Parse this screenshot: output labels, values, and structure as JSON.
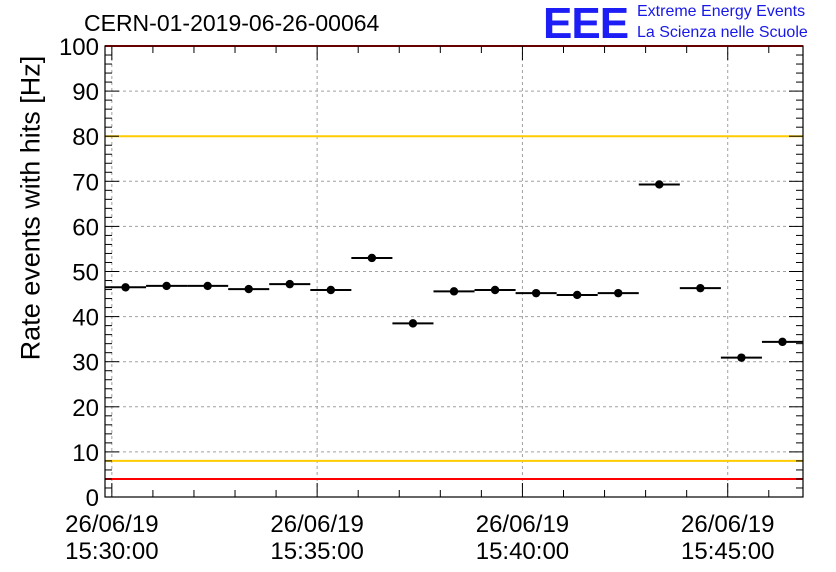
{
  "header": {
    "title": "CERN-01-2019-06-26-00064",
    "logo_text": "EEE",
    "logo_line1": "Extreme Energy Events",
    "logo_line2": "La Scienza nelle Scuole"
  },
  "colors": {
    "logo": "#1d1df5",
    "limit_red": "#ff0000",
    "limit_yellow": "#ffcc00",
    "grid": "#a0a0a0",
    "marker": "#000000"
  },
  "chart_data": {
    "type": "scatter",
    "title": "CERN-01-2019-06-26-00064",
    "xlabel": "",
    "ylabel": "Rate events with hits [Hz]",
    "ylim": [
      0,
      100
    ],
    "y_ticks": [
      "0",
      "10",
      "20",
      "30",
      "40",
      "50",
      "60",
      "70",
      "80",
      "90",
      "100"
    ],
    "x_ticks": [
      {
        "date": "26/06/19",
        "time": "15:30:00"
      },
      {
        "date": "26/06/19",
        "time": "15:35:00"
      },
      {
        "date": "26/06/19",
        "time": "15:40:00"
      },
      {
        "date": "26/06/19",
        "time": "15:45:00"
      }
    ],
    "xlim": [
      "15:29:50",
      "15:46:50"
    ],
    "grid": true,
    "series": [
      {
        "x": [
          "15:30:20",
          "15:31:20",
          "15:32:20",
          "15:33:20",
          "15:34:20",
          "15:35:20",
          "15:36:20",
          "15:37:20",
          "15:38:20",
          "15:39:20",
          "15:40:20",
          "15:41:20",
          "15:42:20",
          "15:43:20",
          "15:44:20",
          "15:45:20",
          "15:46:20"
        ],
        "y": [
          46.5,
          46.8,
          46.8,
          46.1,
          47.2,
          45.9,
          53.0,
          38.5,
          45.6,
          45.9,
          45.2,
          44.8,
          45.2,
          69.3,
          46.3,
          30.9,
          34.4
        ],
        "bin_halfwidth_s": 30
      }
    ],
    "reference_lines": [
      {
        "y": 100,
        "color": "#ff0000"
      },
      {
        "y": 80,
        "color": "#ffcc00"
      },
      {
        "y": 8,
        "color": "#ffcc00"
      },
      {
        "y": 4,
        "color": "#ff0000"
      }
    ]
  }
}
